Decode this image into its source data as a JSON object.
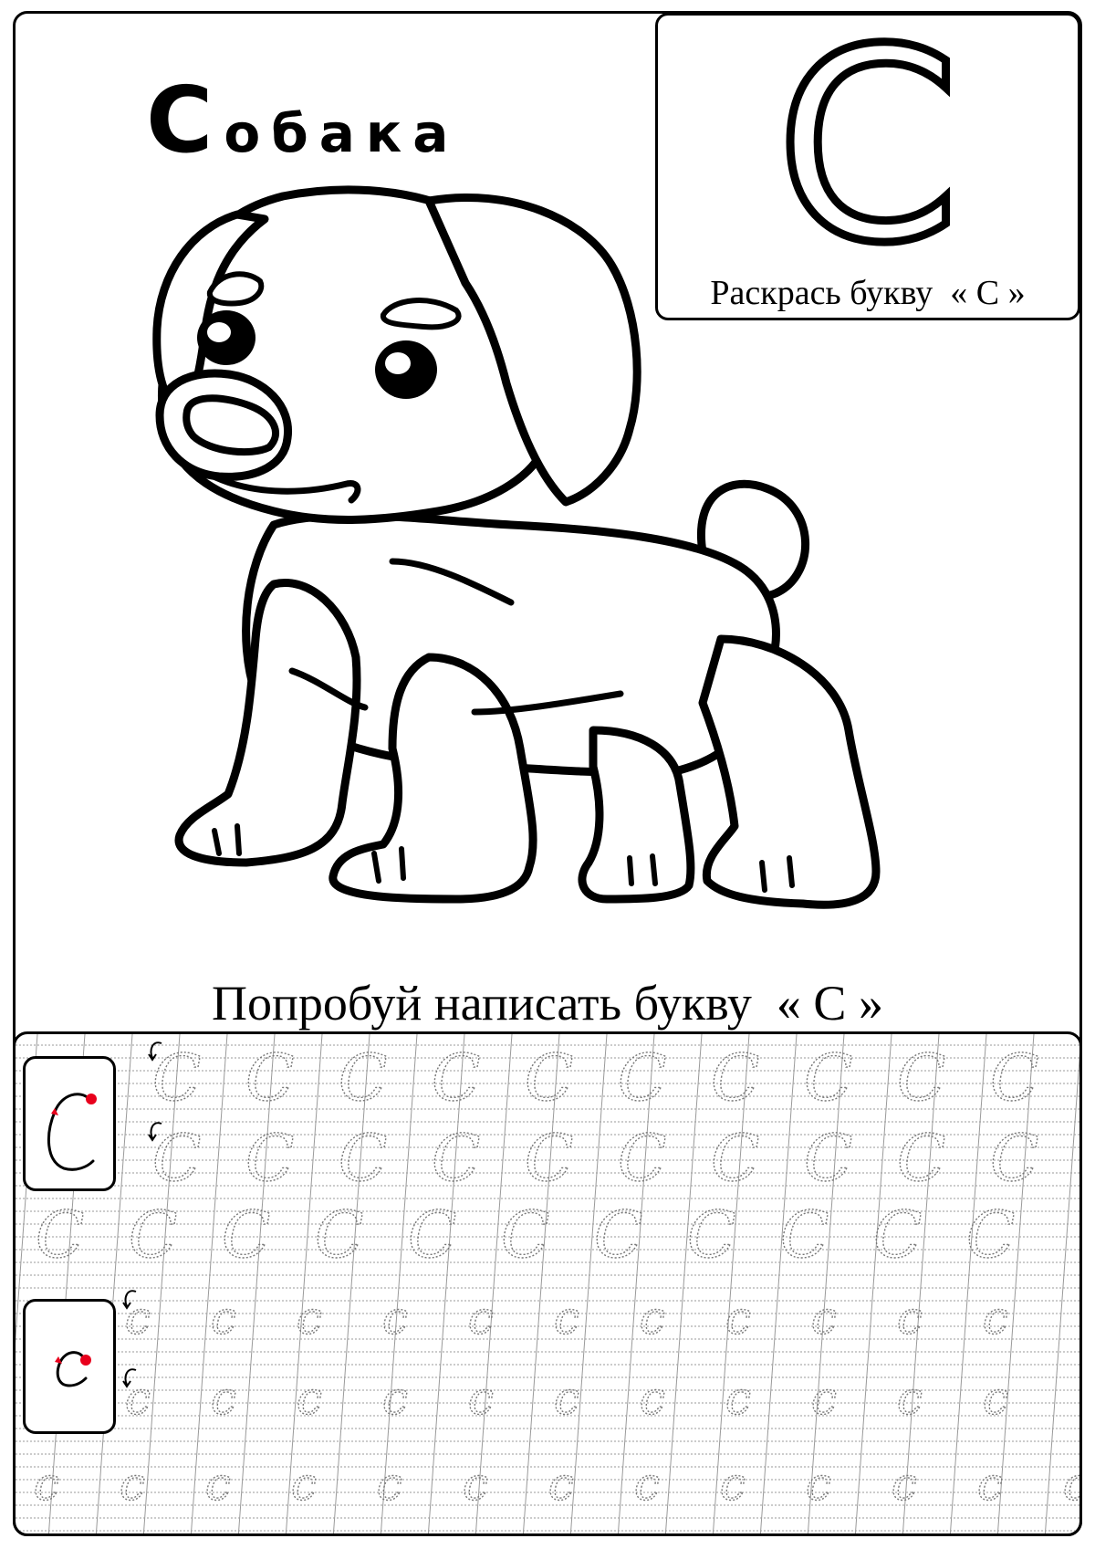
{
  "worksheet": {
    "word": {
      "first_letter": "С",
      "rest": "обака"
    },
    "letter_box": {
      "letter": "С",
      "caption": "Раскрась букву  « С »"
    },
    "illustration": {
      "subject": "dog-icon"
    },
    "practice_caption": "Попробуй написать букву  « С »",
    "practice": {
      "uppercase_letter": "C",
      "lowercase_letter": "c",
      "stroke_start_color": "#e8001c",
      "guide_line_color": "#9a9a9a",
      "trace_color": "#777777"
    }
  }
}
